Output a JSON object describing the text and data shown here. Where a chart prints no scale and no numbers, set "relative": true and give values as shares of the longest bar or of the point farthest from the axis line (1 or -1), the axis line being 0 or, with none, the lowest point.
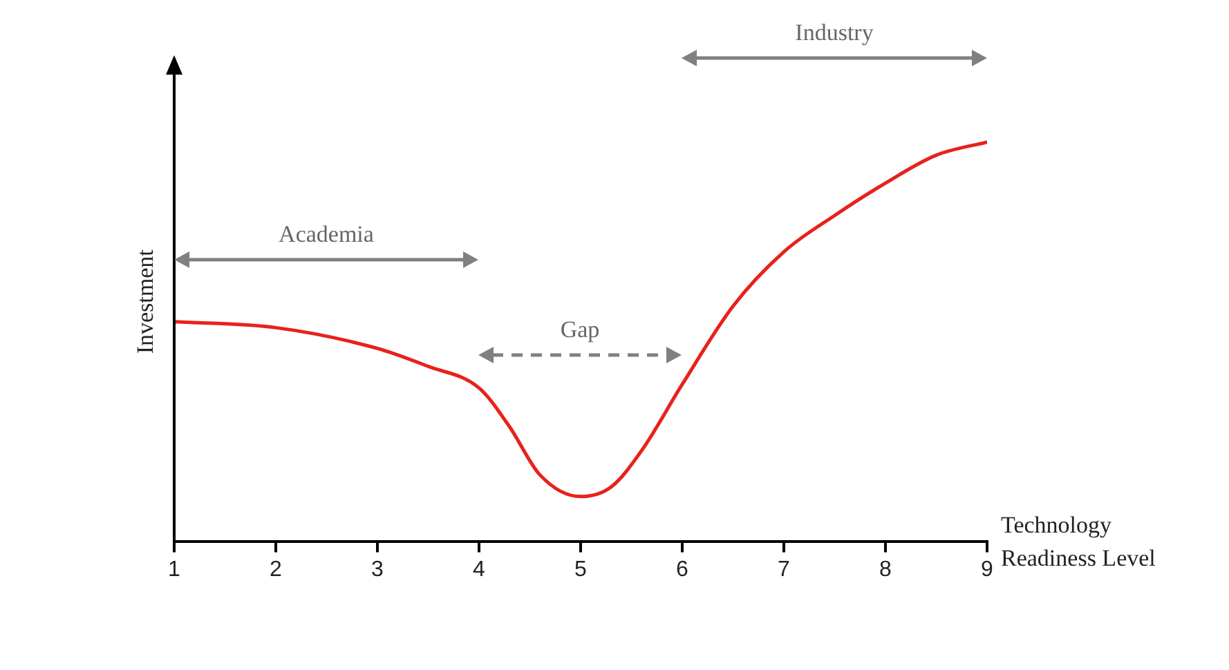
{
  "chart_data": {
    "type": "line",
    "relative": true,
    "xlabel": "Technology Readiness Level",
    "ylabel": "Investment",
    "xlim": [
      1,
      9
    ],
    "xticks": [
      1,
      2,
      3,
      4,
      5,
      6,
      7,
      8,
      9
    ],
    "grid": false,
    "legend": false,
    "marker": "none",
    "x": [
      1,
      2,
      3,
      3.5,
      4,
      4.3,
      4.6,
      5,
      5.3,
      5.6,
      6,
      6.5,
      7,
      7.5,
      8,
      8.5,
      9
    ],
    "series": [
      {
        "color": "#e8211c",
        "values": [
          0.55,
          0.535,
          0.483,
          0.438,
          0.384,
          0.287,
          0.166,
          0.112,
          0.136,
          0.227,
          0.393,
          0.589,
          0.725,
          0.816,
          0.897,
          0.967,
          1
        ]
      }
    ],
    "annotations": [
      "Academia",
      "Gap",
      "Industry"
    ]
  }
}
